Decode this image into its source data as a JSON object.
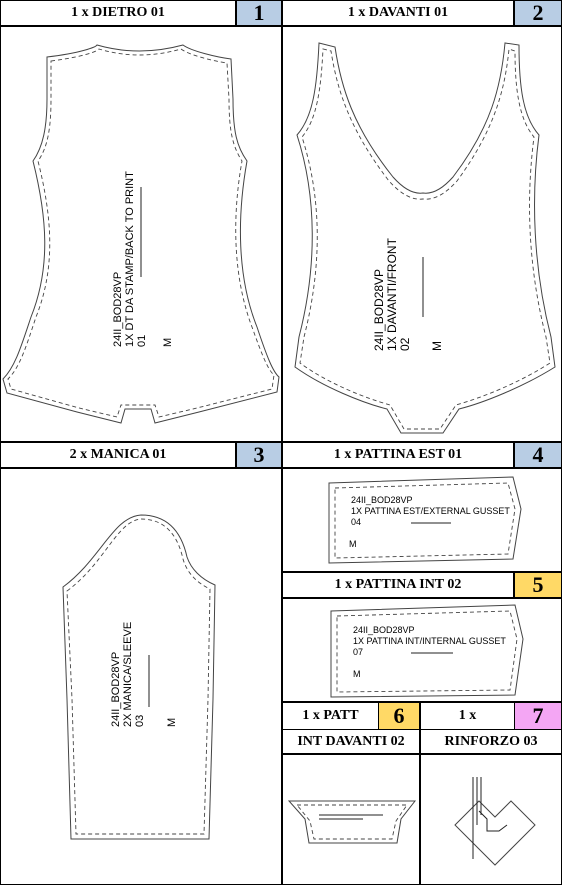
{
  "pieces": [
    {
      "header": "1 x DIETRO 01",
      "number": "1",
      "number_color": "#b8cde4",
      "label_lines": [
        "24II_BOD28VP",
        "1X DT DA STAMP/BACK TO PRINT",
        "01"
      ],
      "size": "M"
    },
    {
      "header": "1 x DAVANTI 01",
      "number": "2",
      "number_color": "#b8cde4",
      "label_lines": [
        "24II_BOD28VP",
        "1X DAVANTI/FRONT",
        "02"
      ],
      "size": "M"
    },
    {
      "header": "2 x MANICA 01",
      "number": "3",
      "number_color": "#b8cde4",
      "label_lines": [
        "24II_BOD28VP",
        "2X MANICA/SLEEVE",
        "03"
      ],
      "size": "M"
    },
    {
      "header": "1 x  PATTINA  EST 01",
      "number": "4",
      "number_color": "#b8cde4",
      "label_lines": [
        "24II_BOD28VP",
        "1X  PATTINA  EST/EXTERNAL GUSSET",
        "04"
      ],
      "size": "M"
    },
    {
      "header": "1 x  PATTINA INT 02",
      "number": "5",
      "number_color": "#ffd966",
      "label_lines": [
        "24II_BOD28VP",
        "1X  PATTINA INT/INTERNAL GUSSET",
        "07"
      ],
      "size": "M"
    },
    {
      "header": "1 x PATT",
      "header_line2": "INT DAVANTI 02",
      "number": "6",
      "number_color": "#ffd966"
    },
    {
      "header": "1 x",
      "header_line2": "RINFORZO 03",
      "number": "7",
      "number_color": "#f4a6f4"
    }
  ]
}
